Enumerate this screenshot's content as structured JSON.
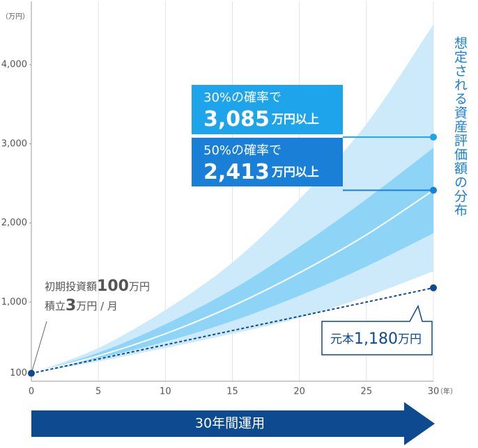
{
  "chart_data": {
    "type": "fan",
    "y_unit": "（万円）",
    "x_unit": "（年）",
    "x": [
      0,
      5,
      10,
      15,
      20,
      25,
      30
    ],
    "xlim": [
      0,
      30
    ],
    "xticks": [
      0,
      5,
      10,
      15,
      20,
      25,
      30
    ],
    "ylim": [
      0,
      4800
    ],
    "yticks": [
      100,
      {
        "value": 1000,
        "label": "1,000"
      },
      {
        "value": 2000,
        "label": "2,000"
      },
      {
        "value": 3000,
        "label": "3,000"
      },
      {
        "value": 4000,
        "label": "4,000"
      }
    ],
    "bands": [
      {
        "color": "#cdeafb",
        "upper": [
          100,
          420,
          900,
          1500,
          2300,
          3250,
          4510
        ],
        "lower": [
          100,
          250,
          420,
          600,
          800,
          1070,
          1390
        ]
      },
      {
        "color": "#8ed4f6",
        "upper": [
          100,
          360,
          720,
          1160,
          1700,
          2300,
          2950
        ],
        "lower": [
          100,
          290,
          500,
          760,
          1080,
          1450,
          1870
        ]
      }
    ],
    "lines": [
      {
        "color": "#ffffff",
        "values": [
          100,
          320,
          600,
          950,
          1370,
          1850,
          2413
        ],
        "dashed": false
      },
      {
        "color": "#0d4a8f",
        "values": [
          100,
          280,
          460,
          640,
          820,
          1000,
          1180
        ],
        "dashed": true
      }
    ],
    "probabilities": [
      {
        "label": "30%の確率で",
        "value": 3085,
        "value_label": "3,085",
        "unit": "万円以上",
        "x": 30,
        "color": "#1ea4ea"
      },
      {
        "label": "50%の確率で",
        "value": 2413,
        "value_label": "2,413",
        "unit": "万円以上",
        "x": 30,
        "color": "#1a7fd6"
      }
    ],
    "initial": {
      "label": "初期投資額",
      "amount": 100,
      "unit": "万円",
      "monthly_label": "積立",
      "monthly": 3,
      "monthly_unit": "万円 / 月"
    },
    "principal": {
      "label": "元本",
      "value": 1180,
      "value_label": "1,180",
      "unit": "万円",
      "x": 30
    },
    "side_title": "想定される資産評価額の分布",
    "banner": "30年間運用"
  }
}
